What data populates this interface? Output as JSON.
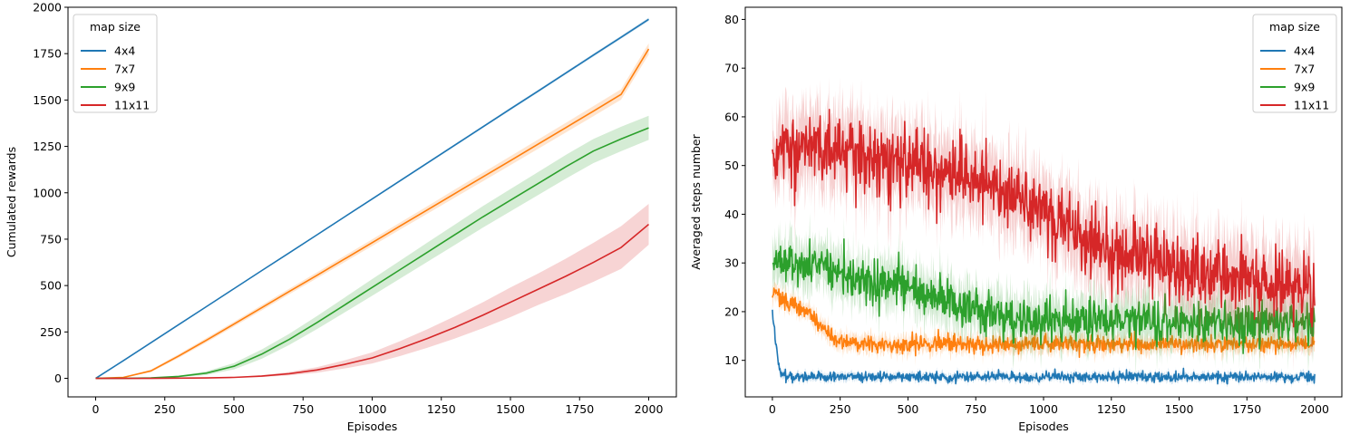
{
  "chart_data": [
    {
      "type": "line",
      "xlabel": "Episodes",
      "ylabel": "Cumulated rewards",
      "xlim": [
        -100,
        2100
      ],
      "ylim": [
        -100,
        2000
      ],
      "x_ticks": [
        0,
        250,
        500,
        750,
        1000,
        1250,
        1500,
        1750,
        2000
      ],
      "y_ticks": [
        0,
        250,
        500,
        750,
        1000,
        1250,
        1500,
        1750,
        2000
      ],
      "legend": {
        "title": "map size",
        "placement": "top-left"
      },
      "x": [
        0,
        100,
        200,
        300,
        400,
        500,
        600,
        700,
        800,
        900,
        1000,
        1100,
        1200,
        1300,
        1400,
        1500,
        1600,
        1700,
        1800,
        1900,
        2000
      ],
      "series": [
        {
          "name": "4x4",
          "color": "#1f77b4",
          "values": [
            0,
            95,
            192,
            289,
            386,
            483,
            580,
            676,
            773,
            870,
            967,
            1064,
            1161,
            1258,
            1355,
            1452,
            1548,
            1645,
            1742,
            1838,
            1935
          ],
          "lower": [
            0,
            94,
            190,
            287,
            384,
            481,
            577,
            673,
            770,
            866,
            963,
            1059,
            1156,
            1252,
            1349,
            1445,
            1541,
            1638,
            1734,
            1830,
            1926
          ],
          "upper": [
            0,
            96,
            194,
            291,
            388,
            485,
            583,
            679,
            776,
            874,
            971,
            1069,
            1166,
            1264,
            1361,
            1459,
            1555,
            1652,
            1750,
            1846,
            1944
          ]
        },
        {
          "name": "7x7",
          "color": "#ff7f0e",
          "values": [
            0,
            5,
            40,
            120,
            205,
            292,
            380,
            468,
            555,
            643,
            731,
            820,
            908,
            997,
            1085,
            1173,
            1262,
            1351,
            1440,
            1530,
            1775
          ],
          "lower": [
            0,
            3,
            33,
            110,
            193,
            279,
            366,
            453,
            539,
            626,
            713,
            801,
            888,
            975,
            1062,
            1149,
            1237,
            1325,
            1413,
            1502,
            1745
          ],
          "upper": [
            0,
            7,
            47,
            130,
            217,
            305,
            394,
            483,
            571,
            660,
            749,
            839,
            928,
            1019,
            1108,
            1197,
            1287,
            1377,
            1467,
            1558,
            1805
          ]
        },
        {
          "name": "9x9",
          "color": "#2ca02c",
          "values": [
            0,
            0,
            2,
            10,
            28,
            65,
            130,
            210,
            300,
            395,
            490,
            585,
            680,
            775,
            870,
            960,
            1050,
            1140,
            1225,
            1290,
            1350
          ],
          "lower": [
            0,
            0,
            1,
            6,
            18,
            48,
            105,
            180,
            265,
            355,
            445,
            537,
            628,
            720,
            812,
            900,
            988,
            1076,
            1160,
            1224,
            1285
          ],
          "upper": [
            0,
            0,
            3,
            14,
            38,
            82,
            155,
            240,
            335,
            435,
            535,
            633,
            732,
            830,
            928,
            1020,
            1112,
            1204,
            1290,
            1356,
            1415
          ]
        },
        {
          "name": "11x11",
          "color": "#d62728",
          "values": [
            0,
            0,
            0,
            1,
            2,
            5,
            12,
            25,
            45,
            75,
            110,
            160,
            215,
            275,
            340,
            410,
            480,
            550,
            625,
            705,
            830
          ],
          "lower": [
            0,
            0,
            0,
            0,
            1,
            3,
            7,
            16,
            30,
            53,
            80,
            120,
            165,
            215,
            270,
            330,
            395,
            455,
            520,
            590,
            720
          ],
          "upper": [
            0,
            0,
            0,
            2,
            3,
            7,
            17,
            34,
            60,
            97,
            140,
            200,
            265,
            335,
            410,
            490,
            565,
            645,
            730,
            820,
            940
          ]
        }
      ]
    },
    {
      "type": "line",
      "xlabel": "Episodes",
      "ylabel": "Averaged steps number",
      "xlim": [
        -100,
        2100
      ],
      "ylim": [
        2.5,
        82.5
      ],
      "x_ticks": [
        0,
        250,
        500,
        750,
        1000,
        1250,
        1500,
        1750,
        2000
      ],
      "y_ticks": [
        10,
        20,
        30,
        40,
        50,
        60,
        70,
        80
      ],
      "legend": {
        "title": "map size",
        "placement": "top-right"
      },
      "noisy": true,
      "x": [
        0,
        25,
        50,
        100,
        150,
        200,
        250,
        300,
        400,
        500,
        600,
        700,
        800,
        900,
        1000,
        1100,
        1200,
        1300,
        1400,
        1500,
        1600,
        1700,
        1800,
        1900,
        2000
      ],
      "series": [
        {
          "name": "4x4",
          "color": "#1f77b4",
          "values": [
            20,
            8,
            6.8,
            6.7,
            6.6,
            6.6,
            6.6,
            6.6,
            6.6,
            6.6,
            6.6,
            6.6,
            6.6,
            6.6,
            6.6,
            6.6,
            6.6,
            6.6,
            6.6,
            6.6,
            6.6,
            6.6,
            6.6,
            6.6,
            6.6
          ],
          "noise": 0.5,
          "band": 0.8
        },
        {
          "name": "7x7",
          "color": "#ff7f0e",
          "values": [
            24,
            23,
            22,
            21,
            19,
            16,
            14,
            13.5,
            13.3,
            13.3,
            13.3,
            13.3,
            13.3,
            13.3,
            13.3,
            13.3,
            13.3,
            13.3,
            13.3,
            13.3,
            13.3,
            13.3,
            13.3,
            13.3,
            13.3
          ],
          "noise": 0.8,
          "band": 1.8
        },
        {
          "name": "9x9",
          "color": "#2ca02c",
          "values": [
            30,
            30,
            30,
            30,
            30,
            29.5,
            28,
            27,
            26,
            25,
            23,
            21,
            19.5,
            18.5,
            18,
            18,
            17.8,
            17.8,
            17.7,
            17.7,
            17.7,
            17.7,
            17.7,
            17.7,
            17.7
          ],
          "noise": 2.2,
          "band": 5
        },
        {
          "name": "11x11",
          "color": "#d62728",
          "values": [
            52,
            53,
            53,
            54,
            54,
            53,
            53,
            52,
            51,
            50,
            49,
            48,
            46,
            43,
            40,
            37,
            34,
            32,
            30,
            29,
            28,
            27,
            26,
            25,
            24.5
          ],
          "noise": 3.5,
          "band": 8
        }
      ]
    }
  ]
}
